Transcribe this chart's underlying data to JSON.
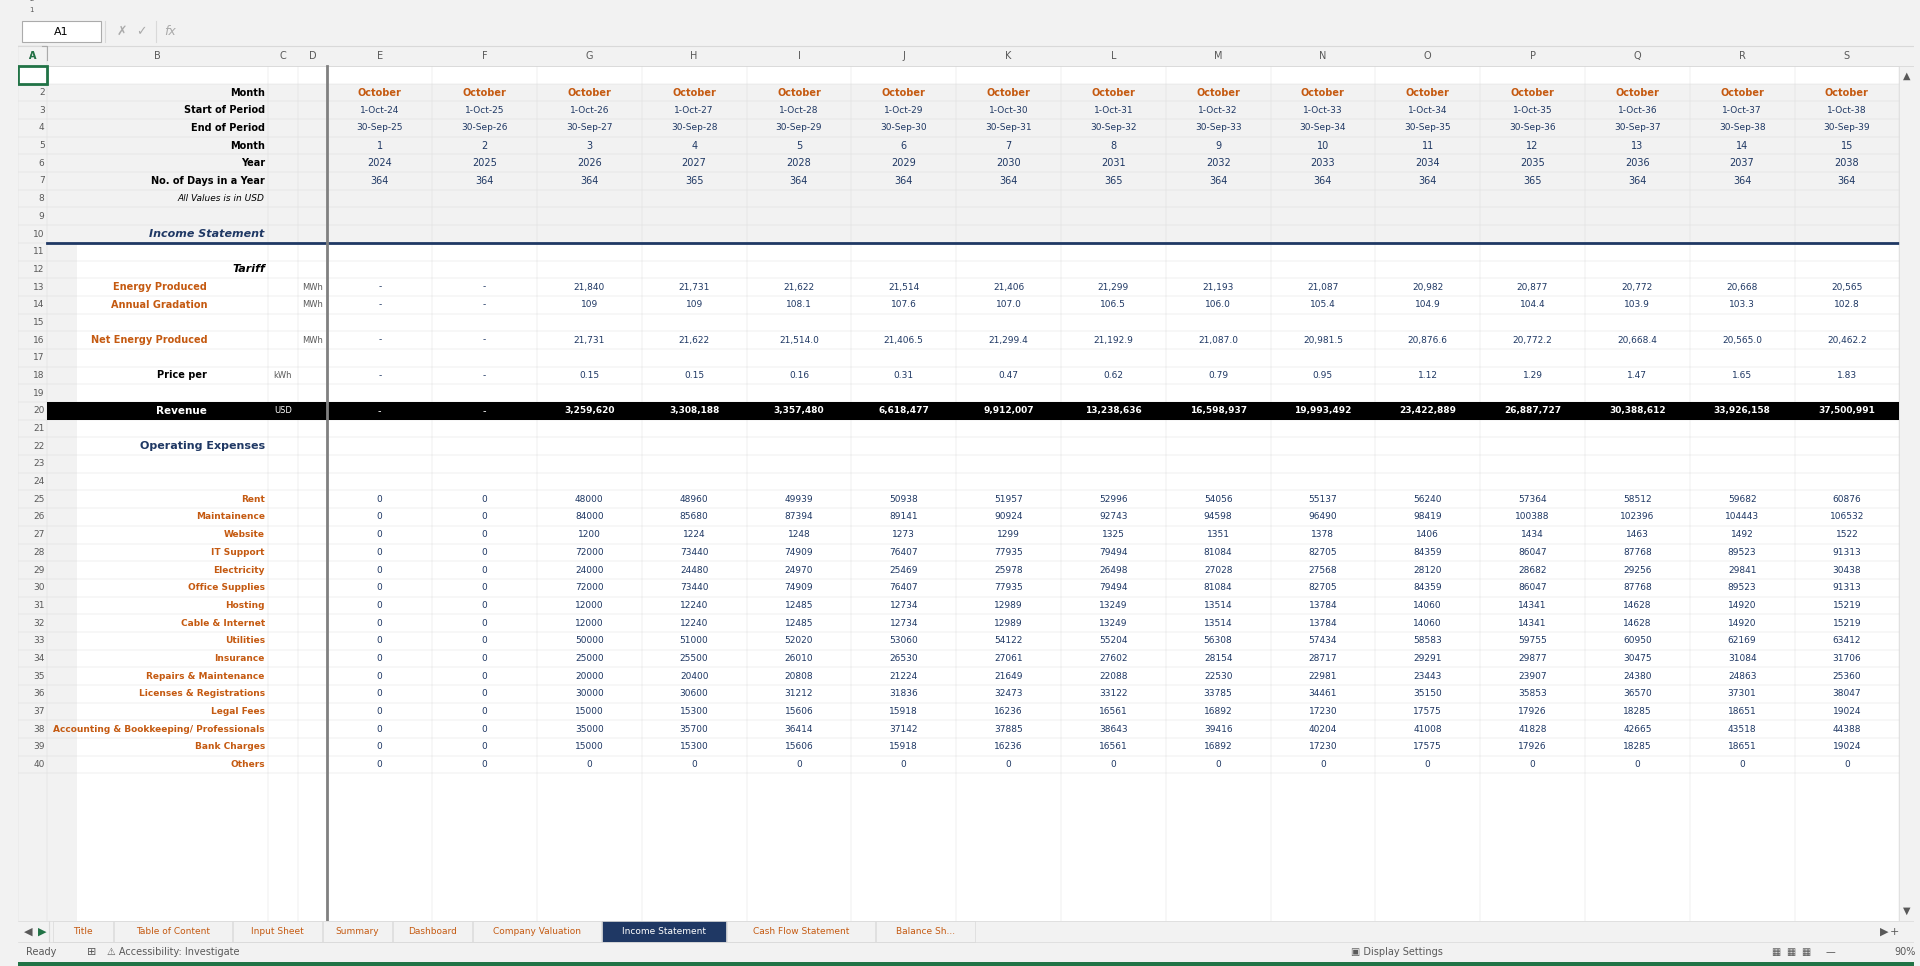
{
  "col_letters": [
    "A",
    "B",
    "C",
    "D",
    "E",
    "F",
    "G",
    "H",
    "I",
    "J",
    "K",
    "L",
    "M",
    "N",
    "O",
    "P",
    "Q",
    "R",
    "S"
  ],
  "months": [
    "October",
    "October",
    "October",
    "October",
    "October",
    "October",
    "October",
    "October",
    "October",
    "October",
    "October",
    "October",
    "October",
    "October",
    "October"
  ],
  "start_periods": [
    "1-Oct-24",
    "1-Oct-25",
    "1-Oct-26",
    "1-Oct-27",
    "1-Oct-28",
    "1-Oct-29",
    "1-Oct-30",
    "1-Oct-31",
    "1-Oct-32",
    "1-Oct-33",
    "1-Oct-34",
    "1-Oct-35",
    "1-Oct-36",
    "1-Oct-37",
    "1-Oct-38"
  ],
  "end_periods": [
    "30-Sep-25",
    "30-Sep-26",
    "30-Sep-27",
    "30-Sep-28",
    "30-Sep-29",
    "30-Sep-30",
    "30-Sep-31",
    "30-Sep-32",
    "30-Sep-33",
    "30-Sep-34",
    "30-Sep-35",
    "30-Sep-36",
    "30-Sep-37",
    "30-Sep-38",
    "30-Sep-39"
  ],
  "month_nums": [
    "1",
    "2",
    "3",
    "4",
    "5",
    "6",
    "7",
    "8",
    "9",
    "10",
    "11",
    "12",
    "13",
    "14",
    "15"
  ],
  "years": [
    "2024",
    "2025",
    "2026",
    "2027",
    "2028",
    "2029",
    "2030",
    "2031",
    "2032",
    "2033",
    "2034",
    "2035",
    "2036",
    "2037",
    "2038"
  ],
  "days_in_year": [
    "364",
    "364",
    "364",
    "365",
    "364",
    "364",
    "364",
    "365",
    "364",
    "364",
    "364",
    "365",
    "364",
    "364",
    "364"
  ],
  "energy_produced": [
    "-",
    "-",
    "21,840",
    "21,731",
    "21,622",
    "21,514",
    "21,406",
    "21,299",
    "21,193",
    "21,087",
    "20,982",
    "20,877",
    "20,772",
    "20,668",
    "20,565"
  ],
  "annual_gradation": [
    "-",
    "-",
    "109",
    "109",
    "108.1",
    "107.6",
    "107.0",
    "106.5",
    "106.0",
    "105.4",
    "104.9",
    "104.4",
    "103.9",
    "103.3",
    "102.8"
  ],
  "net_energy_produced": [
    "-",
    "-",
    "21,731",
    "21,622",
    "21,514.0",
    "21,406.5",
    "21,299.4",
    "21,192.9",
    "21,087.0",
    "20,981.5",
    "20,876.6",
    "20,772.2",
    "20,668.4",
    "20,565.0",
    "20,462.2"
  ],
  "price_per_kwh": [
    "-",
    "-",
    "0.15",
    "0.15",
    "0.16",
    "0.31",
    "0.47",
    "0.62",
    "0.79",
    "0.95",
    "1.12",
    "1.29",
    "1.47",
    "1.65",
    "1.83"
  ],
  "revenue": [
    "-",
    "-",
    "3,259,620",
    "3,308,188",
    "3,357,480",
    "6,618,477",
    "9,912,007",
    "13,238,636",
    "16,598,937",
    "19,993,492",
    "23,422,889",
    "26,887,727",
    "30,388,612",
    "33,926,158",
    "37,500,991"
  ],
  "rent": [
    "0",
    "0",
    "48000",
    "48960",
    "49939",
    "50938",
    "51957",
    "52996",
    "54056",
    "55137",
    "56240",
    "57364",
    "58512",
    "59682",
    "60876"
  ],
  "maintenance": [
    "0",
    "0",
    "84000",
    "85680",
    "87394",
    "89141",
    "90924",
    "92743",
    "94598",
    "96490",
    "98419",
    "100388",
    "102396",
    "104443",
    "106532"
  ],
  "website": [
    "0",
    "0",
    "1200",
    "1224",
    "1248",
    "1273",
    "1299",
    "1325",
    "1351",
    "1378",
    "1406",
    "1434",
    "1463",
    "1492",
    "1522"
  ],
  "it_support": [
    "0",
    "0",
    "72000",
    "73440",
    "74909",
    "76407",
    "77935",
    "79494",
    "81084",
    "82705",
    "84359",
    "86047",
    "87768",
    "89523",
    "91313"
  ],
  "electricity": [
    "0",
    "0",
    "24000",
    "24480",
    "24970",
    "25469",
    "25978",
    "26498",
    "27028",
    "27568",
    "28120",
    "28682",
    "29256",
    "29841",
    "30438"
  ],
  "office_supplies": [
    "0",
    "0",
    "72000",
    "73440",
    "74909",
    "76407",
    "77935",
    "79494",
    "81084",
    "82705",
    "84359",
    "86047",
    "87768",
    "89523",
    "91313"
  ],
  "hosting": [
    "0",
    "0",
    "12000",
    "12240",
    "12485",
    "12734",
    "12989",
    "13249",
    "13514",
    "13784",
    "14060",
    "14341",
    "14628",
    "14920",
    "15219"
  ],
  "cable_internet": [
    "0",
    "0",
    "12000",
    "12240",
    "12485",
    "12734",
    "12989",
    "13249",
    "13514",
    "13784",
    "14060",
    "14341",
    "14628",
    "14920",
    "15219"
  ],
  "utilities": [
    "0",
    "0",
    "50000",
    "51000",
    "52020",
    "53060",
    "54122",
    "55204",
    "56308",
    "57434",
    "58583",
    "59755",
    "60950",
    "62169",
    "63412"
  ],
  "insurance": [
    "0",
    "0",
    "25000",
    "25500",
    "26010",
    "26530",
    "27061",
    "27602",
    "28154",
    "28717",
    "29291",
    "29877",
    "30475",
    "31084",
    "31706"
  ],
  "repairs": [
    "0",
    "0",
    "20000",
    "20400",
    "20808",
    "21224",
    "21649",
    "22088",
    "22530",
    "22981",
    "23443",
    "23907",
    "24380",
    "24863",
    "25360"
  ],
  "licenses": [
    "0",
    "0",
    "30000",
    "30600",
    "31212",
    "31836",
    "32473",
    "33122",
    "33785",
    "34461",
    "35150",
    "35853",
    "36570",
    "37301",
    "38047"
  ],
  "legal_fees": [
    "0",
    "0",
    "15000",
    "15300",
    "15606",
    "15918",
    "16236",
    "16561",
    "16892",
    "17230",
    "17575",
    "17926",
    "18285",
    "18651",
    "19024"
  ],
  "accounting": [
    "0",
    "0",
    "35000",
    "35700",
    "36414",
    "37142",
    "37885",
    "38643",
    "39416",
    "40204",
    "41008",
    "41828",
    "42665",
    "43518",
    "44388"
  ],
  "bank_charges": [
    "0",
    "0",
    "15000",
    "15300",
    "15606",
    "15918",
    "16236",
    "16561",
    "16892",
    "17230",
    "17575",
    "17926",
    "18285",
    "18651",
    "19024"
  ],
  "bg_color": "#f2f2f2",
  "sheet_bg": "#ffffff",
  "col_header_color": "#595959",
  "data_blue": "#1f3864",
  "data_orange": "#c55a11",
  "income_stmt_color": "#1f3864",
  "operating_exp_color": "#1f3864",
  "tab_active_color": "#1f3864",
  "bottom_bar_color": "#217346",
  "tabs": [
    "Title",
    "Table of Content",
    "Input Sheet",
    "Summary",
    "Dashboard",
    "Company Valuation",
    "Income Statement",
    "Cash Flow Statement",
    "Balance Sh..."
  ],
  "tab_active_idx": 6
}
